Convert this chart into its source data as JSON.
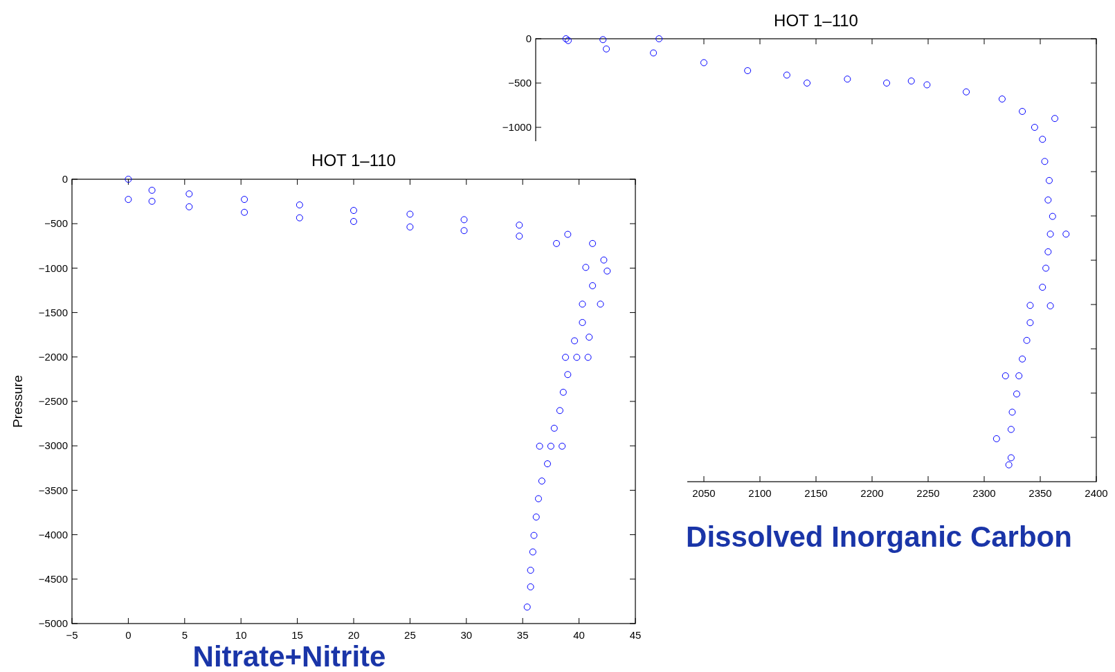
{
  "chart_data": [
    {
      "type": "scatter",
      "title": "HOT 1–110",
      "xlabel": "Dissolved Inorganic Carbon",
      "marker": "circle",
      "grid": false,
      "xlim": [
        1900,
        2400
      ],
      "xticks": [
        2050,
        2100,
        2150,
        2200,
        2250,
        2300,
        2350,
        2400
      ],
      "ylim": [
        -5000,
        0
      ],
      "yticks": [
        0,
        -500,
        -1000,
        {
          "value": -1500,
          "label": null
        },
        {
          "value": -2000,
          "label": null
        },
        {
          "value": -2500,
          "label": null
        },
        {
          "value": -3000,
          "label": null
        },
        {
          "value": -3500,
          "label": null
        },
        {
          "value": -4000,
          "label": null
        },
        {
          "value": -4500,
          "label": null
        }
      ],
      "series": [
        {
          "color": "#0000ff",
          "x": [
            1927,
            1929,
            1960,
            2010,
            1963,
            2005,
            2050,
            2089,
            2124,
            2142,
            2178,
            2213,
            2235,
            2249,
            2284,
            2316,
            2334,
            2345,
            2363,
            2352,
            2354,
            2358,
            2357,
            2361,
            2373,
            2359,
            2357,
            2355,
            2352,
            2341,
            2359,
            2341,
            2338,
            2334,
            2331,
            2319,
            2329,
            2325,
            2324,
            2311,
            2324,
            2322
          ],
          "values": [
            0,
            -20,
            -10,
            0,
            -115,
            -160,
            -270,
            -360,
            -410,
            -500,
            -455,
            -500,
            -477,
            -520,
            -600,
            -680,
            -820,
            -1000,
            -900,
            -1135,
            -1385,
            -1600,
            -1820,
            -2005,
            -2205,
            -2205,
            -2405,
            -2590,
            -2805,
            -3010,
            -3015,
            -3205,
            -3405,
            -3615,
            -3805,
            -3805,
            -4010,
            -4215,
            -4410,
            -4515,
            -4730,
            -4810
          ]
        }
      ]
    },
    {
      "type": "scatter",
      "title": "HOT 1–110",
      "xlabel": "Nitrate+Nitrite",
      "ylabel": "Pressure",
      "marker": "circle",
      "grid": false,
      "xlim": [
        -5,
        45
      ],
      "xticks": [
        -5,
        0,
        5,
        10,
        15,
        20,
        25,
        30,
        35,
        40,
        45
      ],
      "ylim": [
        -5000,
        0
      ],
      "yticks": [
        0,
        -500,
        -1000,
        -1500,
        -2000,
        -2500,
        -3000,
        -3500,
        -4000,
        -4500,
        -5000
      ],
      "series": [
        {
          "color": "#0000ff",
          "x": [
            0,
            0,
            2.1,
            2.1,
            5.4,
            5.4,
            10.3,
            10.3,
            15.2,
            15.2,
            20,
            20,
            25,
            25,
            29.8,
            29.8,
            34.7,
            34.7,
            39,
            38,
            41.2,
            42.2,
            40.6,
            42.5,
            41.2,
            41.9,
            40.3,
            40.3,
            40.9,
            39.6,
            39.8,
            38.8,
            40.8,
            39,
            38.6,
            38.3,
            37.8,
            37.5,
            36.5,
            38.5,
            37.2,
            36.7,
            36.4,
            36.2,
            36,
            35.9,
            35.7,
            35.7,
            35.4
          ],
          "values": [
            0,
            -227,
            -124,
            -248,
            -165,
            -310,
            -227,
            -372,
            -289,
            -434,
            -351,
            -475,
            -393,
            -537,
            -455,
            -578,
            -516,
            -640,
            -620,
            -723,
            -723,
            -909,
            -992,
            -1033,
            -1198,
            -1405,
            -1405,
            -1612,
            -1777,
            -1818,
            -2004,
            -2004,
            -2004,
            -2198,
            -2397,
            -2603,
            -2802,
            -3004,
            -3004,
            -3004,
            -3202,
            -3396,
            -3595,
            -3801,
            -4008,
            -4194,
            -4400,
            -4587,
            -4814
          ]
        }
      ]
    }
  ]
}
